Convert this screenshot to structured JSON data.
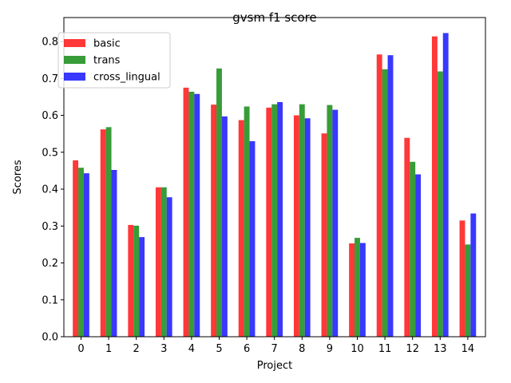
{
  "chart_data": {
    "type": "bar",
    "title": "gvsm f1 score",
    "xlabel": "Project",
    "ylabel": "Scores",
    "ylim": [
      0,
      0.865
    ],
    "yticks": [
      "0.0",
      "0.1",
      "0.2",
      "0.3",
      "0.4",
      "0.5",
      "0.6",
      "0.7",
      "0.8"
    ],
    "categories": [
      "0",
      "1",
      "2",
      "3",
      "4",
      "5",
      "6",
      "7",
      "8",
      "9",
      "10",
      "11",
      "12",
      "13",
      "14"
    ],
    "legend_position": "top-left",
    "grid": false,
    "series": [
      {
        "name": "basic",
        "color": "#ff0000",
        "values": [
          0.478,
          0.562,
          0.303,
          0.405,
          0.675,
          0.629,
          0.587,
          0.621,
          0.6,
          0.551,
          0.253,
          0.765,
          0.539,
          0.814,
          0.315
        ]
      },
      {
        "name": "trans",
        "color": "#008000",
        "values": [
          0.458,
          0.568,
          0.301,
          0.405,
          0.664,
          0.727,
          0.624,
          0.63,
          0.63,
          0.628,
          0.268,
          0.725,
          0.474,
          0.719,
          0.25
        ]
      },
      {
        "name": "cross_lingual",
        "color": "#0000ff",
        "values": [
          0.443,
          0.452,
          0.27,
          0.378,
          0.658,
          0.597,
          0.53,
          0.636,
          0.592,
          0.615,
          0.254,
          0.763,
          0.44,
          0.823,
          0.334
        ]
      }
    ]
  }
}
